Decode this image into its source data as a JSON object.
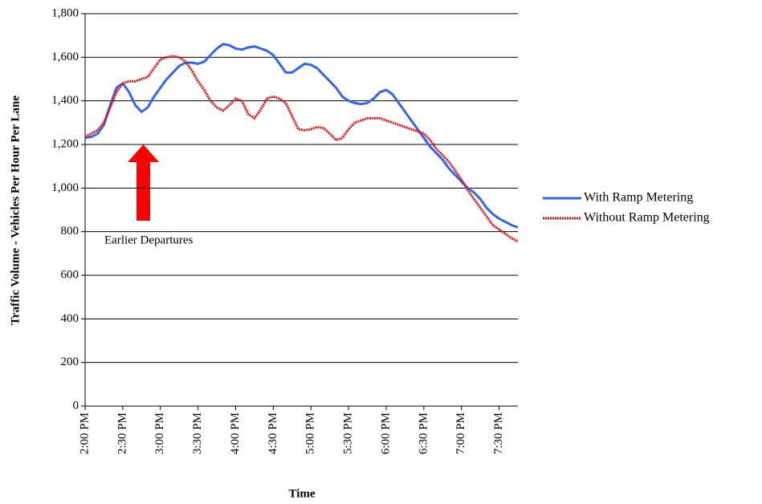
{
  "chart_data": {
    "type": "line",
    "y_label": "Traffic Volume - Vehicles Per Hour Per Lane",
    "x_label": "Time",
    "annotation": "Earlier Departures",
    "categories": [
      "2:00 PM",
      null,
      null,
      null,
      null,
      null,
      "2:30 PM",
      null,
      null,
      null,
      null,
      null,
      "3:00 PM",
      null,
      null,
      null,
      null,
      null,
      "3:30 PM",
      null,
      null,
      null,
      null,
      null,
      "4:00 PM",
      null,
      null,
      null,
      null,
      null,
      "4:30 PM",
      null,
      null,
      null,
      null,
      null,
      "5:00 PM",
      null,
      null,
      null,
      null,
      null,
      "5:30 PM",
      null,
      null,
      null,
      null,
      null,
      "6:00 PM",
      null,
      null,
      null,
      null,
      null,
      "6:30 PM",
      null,
      null,
      null,
      null,
      null,
      "7:00 PM",
      null,
      null,
      null,
      null,
      null,
      "7:30 PM",
      null,
      null,
      null
    ],
    "series": [
      {
        "name": "With Ramp Metering",
        "color": "#3366ee",
        "style": "solid",
        "values": [
          1230,
          1235,
          1250,
          1290,
          1380,
          1460,
          1480,
          1440,
          1380,
          1350,
          1370,
          1420,
          1460,
          1500,
          1530,
          1560,
          1575,
          1575,
          1570,
          1580,
          1610,
          1640,
          1660,
          1655,
          1640,
          1635,
          1645,
          1650,
          1640,
          1630,
          1610,
          1570,
          1530,
          1530,
          1550,
          1570,
          1565,
          1550,
          1520,
          1490,
          1460,
          1420,
          1400,
          1390,
          1385,
          1390,
          1410,
          1440,
          1450,
          1430,
          1390,
          1350,
          1310,
          1270,
          1230,
          1190,
          1160,
          1130,
          1090,
          1060,
          1030,
          1000,
          980,
          950,
          910,
          880,
          860,
          845,
          830,
          820
        ]
      },
      {
        "name": "Without Ramp Metering",
        "color": "#dd1111",
        "style": "dotted",
        "values": [
          1235,
          1250,
          1265,
          1300,
          1370,
          1440,
          1480,
          1490,
          1490,
          1500,
          1510,
          1550,
          1590,
          1600,
          1605,
          1600,
          1580,
          1540,
          1490,
          1450,
          1400,
          1370,
          1355,
          1380,
          1410,
          1400,
          1340,
          1320,
          1360,
          1410,
          1420,
          1410,
          1390,
          1330,
          1270,
          1265,
          1270,
          1280,
          1275,
          1250,
          1220,
          1230,
          1270,
          1300,
          1310,
          1320,
          1320,
          1320,
          1310,
          1300,
          1290,
          1280,
          1270,
          1260,
          1250,
          1220,
          1180,
          1150,
          1120,
          1080,
          1040,
          990,
          950,
          910,
          870,
          830,
          810,
          790,
          770,
          755
        ]
      }
    ],
    "ylim": [
      0,
      1800
    ],
    "yticks": [
      0,
      200,
      400,
      600,
      800,
      {
        "value": 1000,
        "label": "1,000"
      },
      {
        "value": 1200,
        "label": "1,200"
      },
      {
        "value": 1400,
        "label": "1,400"
      },
      {
        "value": 1600,
        "label": "1,600"
      },
      {
        "value": 1800,
        "label": "1,800"
      }
    ],
    "grid": true,
    "legend": "right"
  }
}
